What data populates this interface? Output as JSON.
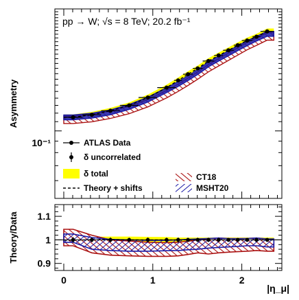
{
  "chart_data": [
    {
      "type": "line",
      "annotation": "pp → W; √s = 8 TeV; 20.2 fb⁻¹",
      "ylabel": "Asymmetry",
      "xlabel": "",
      "yscale": "log",
      "ylim": [
        0.05,
        0.35
      ],
      "xlim": [
        -0.1,
        2.45
      ],
      "y_tick_labels": [
        "10⁻¹"
      ],
      "x_tick_labels": [],
      "x": [
        0.105,
        0.315,
        0.525,
        0.735,
        0.945,
        1.155,
        1.285,
        1.395,
        1.505,
        1.625,
        1.74,
        1.85,
        1.955,
        2.06,
        2.165,
        2.285
      ],
      "x_err": [
        0.105,
        0.105,
        0.105,
        0.105,
        0.105,
        0.105,
        0.045,
        0.055,
        0.055,
        0.065,
        0.05,
        0.06,
        0.045,
        0.06,
        0.045,
        0.075
      ],
      "series": [
        {
          "name": "ATLAS Data",
          "values": [
            0.115,
            0.118,
            0.123,
            0.13,
            0.141,
            0.156,
            0.168,
            0.179,
            0.19,
            0.205,
            0.217,
            0.229,
            0.241,
            0.253,
            0.263,
            0.278
          ]
        },
        {
          "name": "CT18",
          "values": [
            0.113,
            0.115,
            0.119,
            0.125,
            0.134,
            0.147,
            0.157,
            0.167,
            0.178,
            0.192,
            0.204,
            0.216,
            0.228,
            0.241,
            0.252,
            0.266
          ]
        },
        {
          "name": "MSHT20",
          "values": [
            0.115,
            0.117,
            0.121,
            0.128,
            0.138,
            0.152,
            0.162,
            0.172,
            0.183,
            0.198,
            0.21,
            0.222,
            0.234,
            0.246,
            0.258,
            0.271
          ]
        },
        {
          "name": "Theory + shifts",
          "values": [
            0.115,
            0.118,
            0.123,
            0.13,
            0.141,
            0.156,
            0.168,
            0.179,
            0.19,
            0.205,
            0.217,
            0.229,
            0.241,
            0.253,
            0.263,
            0.278
          ]
        }
      ],
      "legend": [
        "ATLAS Data",
        "δ uncorrelated",
        "δ total",
        "Theory + shifts",
        "CT18",
        "MSHT20"
      ],
      "legend_position": "bottom-left",
      "colors": {
        "data": "#000000",
        "total": "#ffff00",
        "ct18": "#aa1111",
        "msht20": "#1a1aa6"
      }
    },
    {
      "type": "line",
      "ylabel": "Theory/Data",
      "xlabel": "|η_μ|",
      "ylim": [
        0.87,
        1.15
      ],
      "xlim": [
        -0.1,
        2.45
      ],
      "y_ticks": [
        0.9,
        1.0,
        1.1
      ],
      "y_tick_labels": [
        "0.9",
        "1",
        "1.1"
      ],
      "x_ticks": [
        0,
        1,
        2
      ],
      "x_tick_labels": [
        "0",
        "1",
        "2"
      ],
      "x": [
        0.105,
        0.315,
        0.525,
        0.735,
        0.945,
        1.155,
        1.285,
        1.395,
        1.505,
        1.625,
        1.74,
        1.85,
        1.955,
        2.06,
        2.165,
        2.285
      ],
      "series": [
        {
          "name": "Data",
          "values": [
            1.0,
            1.0,
            1.0,
            1.0,
            1.0,
            1.0,
            1.0,
            1.0,
            1.0,
            1.0,
            1.0,
            1.0,
            1.0,
            1.0,
            1.0,
            1.0
          ],
          "err": [
            0.012,
            0.01,
            0.01,
            0.009,
            0.01,
            0.009,
            0.01,
            0.009,
            0.009,
            0.009,
            0.009,
            0.008,
            0.008,
            0.008,
            0.008,
            0.008
          ]
        },
        {
          "name": "δ total",
          "low": [
            0.99,
            0.99,
            0.991,
            0.991,
            0.991,
            0.99,
            0.99,
            0.99,
            0.99,
            0.99,
            0.99,
            0.99,
            0.99,
            0.99,
            0.99,
            0.99
          ],
          "high": [
            1.012,
            1.013,
            1.014,
            1.014,
            1.013,
            1.012,
            1.01,
            1.01,
            1.01,
            1.01,
            1.01,
            1.01,
            1.01,
            1.01,
            1.01,
            1.01
          ]
        },
        {
          "name": "CT18",
          "low": [
            0.975,
            0.945,
            0.935,
            0.932,
            0.93,
            0.93,
            0.932,
            0.938,
            0.945,
            0.94,
            0.945,
            0.948,
            0.95,
            0.952,
            0.955,
            0.952
          ],
          "high": [
            1.045,
            1.02,
            1.0,
            0.995,
            0.99,
            0.988,
            0.99,
            0.994,
            1.0,
            1.005,
            1.008,
            1.006,
            1.005,
            1.006,
            1.008,
            1.003
          ]
        },
        {
          "name": "MSHT20",
          "low": [
            0.99,
            0.96,
            0.955,
            0.952,
            0.952,
            0.954,
            0.955,
            0.958,
            0.96,
            0.965,
            0.968,
            0.97,
            0.972,
            0.975,
            0.975,
            0.97
          ],
          "high": [
            1.025,
            1.01,
            1.002,
            1.0,
            0.998,
            0.998,
            1.0,
            1.002,
            1.004,
            1.006,
            1.008,
            1.005,
            1.005,
            1.006,
            1.008,
            1.004
          ]
        },
        {
          "name": "Theory + shifts",
          "values": [
            0.999,
            1.0,
            1.001,
            1.0,
            1.0,
            1.0,
            1.0,
            1.0,
            1.0,
            1.0,
            1.0,
            1.0,
            1.0,
            1.0,
            1.0,
            1.0
          ]
        }
      ]
    }
  ]
}
